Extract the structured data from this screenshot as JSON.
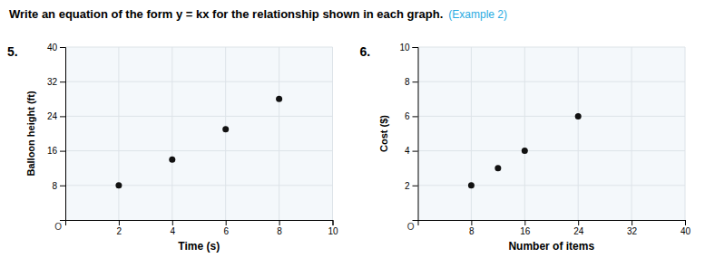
{
  "title": "Write an equation of the form y = kx for the relationship shown in each graph.",
  "subtitle": "(Example 2)",
  "chart_data": [
    {
      "type": "scatter",
      "title": "5.",
      "xlabel": "Time (s)",
      "ylabel": "Balloon height (ft)",
      "x": [
        2,
        4,
        6,
        8
      ],
      "values": [
        8,
        14,
        21,
        28
      ],
      "color": "#111111",
      "xlim": [
        0,
        10
      ],
      "ylim": [
        0,
        40
      ],
      "xticks": [
        2,
        4,
        6,
        8,
        10
      ],
      "yticks": [
        8,
        16,
        24,
        32,
        40
      ],
      "grid": true,
      "annotations": [
        {
          "text": "O",
          "x": 0,
          "y": 0
        }
      ]
    },
    {
      "type": "scatter",
      "title": "6.",
      "xlabel": "Number of items",
      "ylabel": "Cost ($)",
      "x": [
        8,
        12,
        16,
        24
      ],
      "values": [
        2,
        3,
        4,
        6
      ],
      "color": "#111111",
      "xlim": [
        0,
        40
      ],
      "ylim": [
        0,
        10
      ],
      "xticks": [
        8,
        16,
        24,
        32,
        40
      ],
      "yticks": [
        2,
        4,
        6,
        8,
        10
      ],
      "grid": true,
      "annotations": [
        {
          "text": "O",
          "x": 0,
          "y": 0
        }
      ]
    }
  ]
}
